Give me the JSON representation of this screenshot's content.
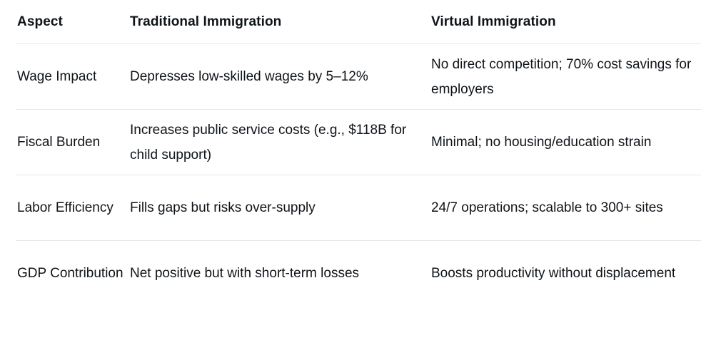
{
  "table": {
    "headers": [
      "Aspect",
      "Traditional Immigration",
      "Virtual Immigration"
    ],
    "rows": [
      [
        "Wage Impact",
        "Depresses low-skilled wages by 5–12%",
        "No direct competition; 70% cost savings for employers"
      ],
      [
        "Fiscal Burden",
        "Increases public service costs (e.g., $118B for child support)",
        "Minimal; no housing/education strain"
      ],
      [
        "Labor Efficiency",
        "Fills gaps but risks over-supply",
        "24/7 operations; scalable to 300+ sites"
      ],
      [
        "GDP Contribution",
        "Net positive but with short-term losses",
        "Boosts productivity without displacement"
      ]
    ]
  }
}
